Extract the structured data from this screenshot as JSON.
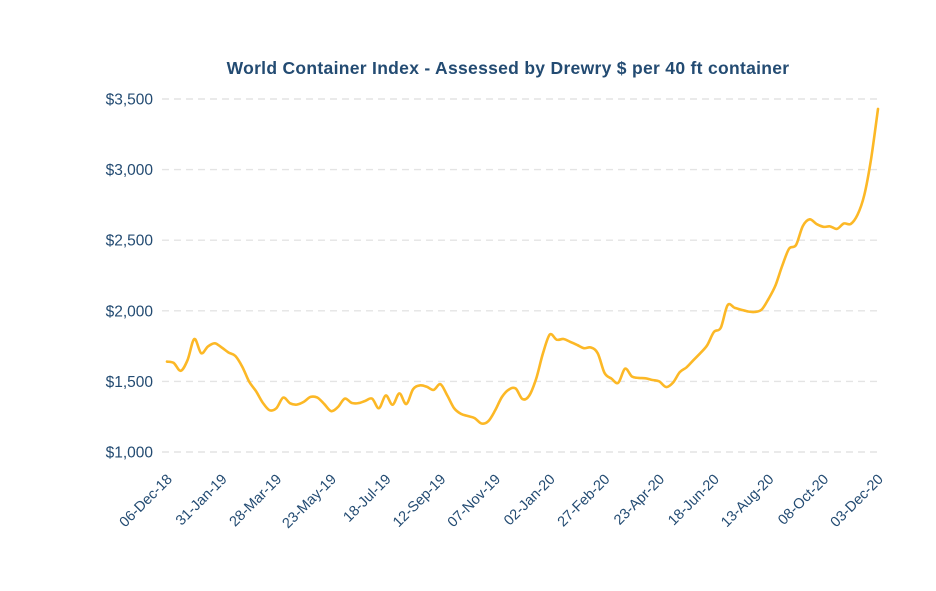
{
  "chart_data": {
    "type": "line",
    "title": "World Container Index - Assessed by Drewry $ per 40 ft container",
    "subtitle": "",
    "xlabel": "",
    "ylabel": "",
    "legend": "none",
    "grid": "horizontal-dashed",
    "line_color": "#FCB826",
    "text_color": "#234B72",
    "grid_color": "#E4E4E4",
    "background_color": "#FFFFFF",
    "ylim": [
      1000,
      3500
    ],
    "y_ticks": [
      1000,
      1500,
      2000,
      2500,
      3000,
      3500
    ],
    "y_tick_labels": [
      "$1,000",
      "$1,500",
      "$2,000",
      "$2,500",
      "$3,000",
      "$3,500"
    ],
    "x_tick_labels": [
      "06-Dec-18",
      "31-Jan-19",
      "28-Mar-19",
      "23-May-19",
      "18-Jul-19",
      "12-Sep-19",
      "07-Nov-19",
      "02-Jan-20",
      "27-Feb-20",
      "23-Apr-20",
      "18-Jun-20",
      "13-Aug-20",
      "08-Oct-20",
      "03-Dec-20"
    ],
    "x_tick_every_n_points": 8,
    "x_unit": "weekly observations",
    "series": [
      {
        "name": "World Container Index ($ per 40 ft container)",
        "values": [
          1640,
          1630,
          1575,
          1650,
          1800,
          1700,
          1748,
          1770,
          1740,
          1705,
          1680,
          1605,
          1500,
          1432,
          1350,
          1296,
          1310,
          1385,
          1345,
          1336,
          1355,
          1390,
          1385,
          1340,
          1290,
          1318,
          1378,
          1348,
          1346,
          1362,
          1378,
          1310,
          1400,
          1335,
          1415,
          1340,
          1445,
          1472,
          1462,
          1440,
          1480,
          1400,
          1310,
          1270,
          1255,
          1240,
          1202,
          1218,
          1295,
          1390,
          1442,
          1450,
          1375,
          1400,
          1520,
          1700,
          1832,
          1795,
          1800,
          1780,
          1758,
          1735,
          1740,
          1700,
          1560,
          1520,
          1490,
          1590,
          1535,
          1525,
          1522,
          1510,
          1500,
          1460,
          1490,
          1565,
          1600,
          1650,
          1700,
          1755,
          1850,
          1880,
          2040,
          2022,
          2008,
          1995,
          1992,
          2010,
          2085,
          2180,
          2320,
          2440,
          2465,
          2600,
          2648,
          2615,
          2595,
          2598,
          2580,
          2618,
          2615,
          2680,
          2820,
          3080,
          3430
        ]
      }
    ]
  }
}
